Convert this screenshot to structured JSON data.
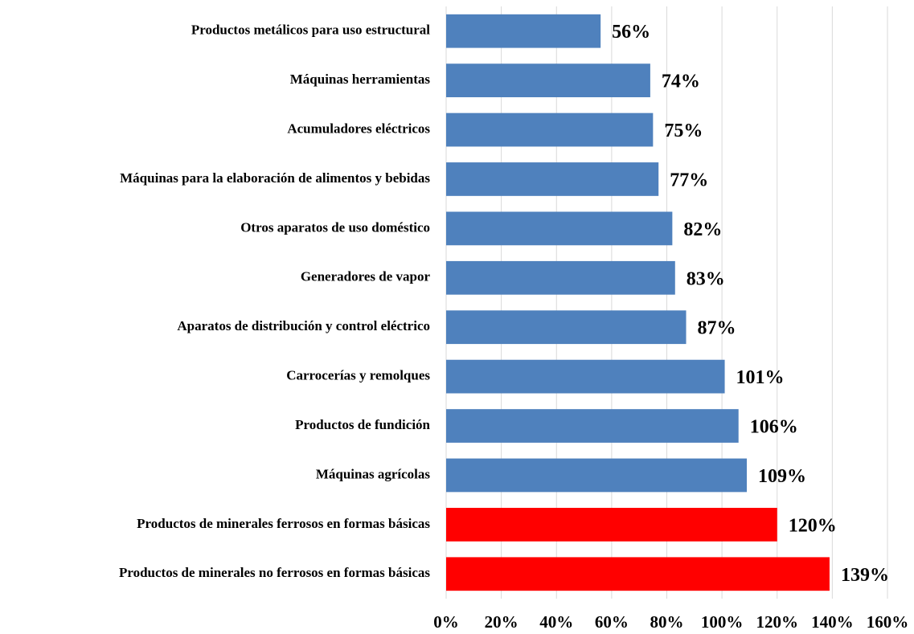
{
  "chart_data": {
    "type": "bar",
    "orientation": "horizontal",
    "categories": [
      "Productos metálicos para uso estructural",
      "Máquinas herramientas",
      "Acumuladores eléctricos",
      "Máquinas para la elaboración de alimentos y bebidas",
      "Otros aparatos de uso doméstico",
      "Generadores de vapor",
      "Aparatos de distribución y control eléctrico",
      "Carrocerías y remolques",
      "Productos de fundición",
      "Máquinas agrícolas",
      "Productos de minerales ferrosos en formas básicas",
      "Productos de minerales no ferrosos en formas básicas"
    ],
    "values": [
      56,
      74,
      75,
      77,
      82,
      83,
      87,
      101,
      106,
      109,
      120,
      139
    ],
    "value_labels": [
      "56%",
      "74%",
      "75%",
      "77%",
      "82%",
      "83%",
      "87%",
      "101%",
      "106%",
      "109%",
      "120%",
      "139%"
    ],
    "colors": [
      "#4f81bd",
      "#4f81bd",
      "#4f81bd",
      "#4f81bd",
      "#4f81bd",
      "#4f81bd",
      "#4f81bd",
      "#4f81bd",
      "#4f81bd",
      "#4f81bd",
      "#ff0000",
      "#ff0000"
    ],
    "xlim": [
      0,
      160
    ],
    "xticks": [
      {
        "value": 0,
        "label": "0%"
      },
      {
        "value": 20,
        "label": "20%"
      },
      {
        "value": 40,
        "label": "40%"
      },
      {
        "value": 60,
        "label": "60%"
      },
      {
        "value": 80,
        "label": "80%"
      },
      {
        "value": 100,
        "label": "100%"
      },
      {
        "value": 120,
        "label": "120%"
      },
      {
        "value": 140,
        "label": "140%"
      },
      {
        "value": 160,
        "label": "160%"
      }
    ],
    "grid": true
  }
}
